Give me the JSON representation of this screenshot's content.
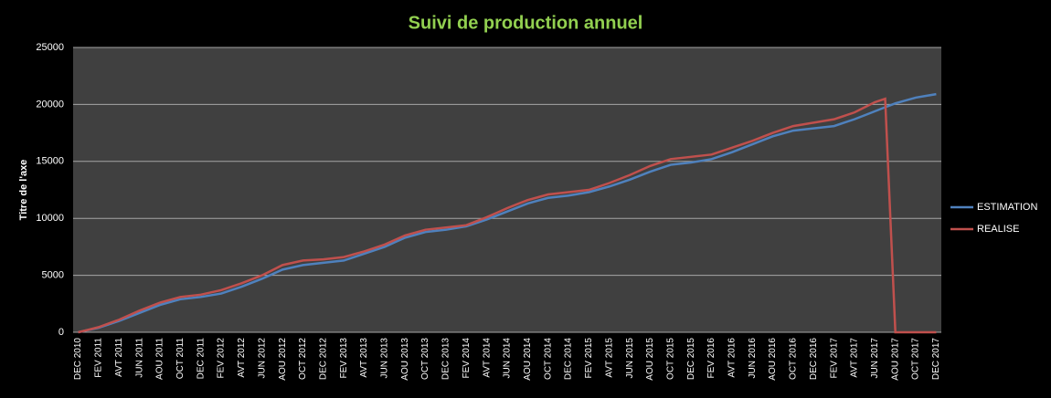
{
  "chart_data": {
    "type": "line",
    "title": "Suivi de production annuel",
    "y_label": "Titre de l'axe",
    "categories": [
      "DEC 2010",
      null,
      "FEV 2011",
      null,
      "AVT 2011",
      null,
      "JUN 2011",
      null,
      "AOU 2011",
      null,
      "OCT 2011",
      null,
      "DEC 2011",
      null,
      "FEV 2012",
      null,
      "AVT 2012",
      null,
      "JUN 2012",
      null,
      "AOU 2012",
      null,
      "OCT 2012",
      null,
      "DEC 2012",
      null,
      "FEV 2013",
      null,
      "AVT 2013",
      null,
      "JUN 2013",
      null,
      "AOU 2013",
      null,
      "OCT 2013",
      null,
      "DEC 2013",
      null,
      "FEV 2014",
      null,
      "AVT 2014",
      null,
      "JUN 2014",
      null,
      "AOU 2014",
      null,
      "OCT 2014",
      null,
      "DEC 2014",
      null,
      "FEV 2015",
      null,
      "AVT 2015",
      null,
      "JUN 2015",
      null,
      "AOU 2015",
      null,
      "OCT 2015",
      null,
      "DEC 2015",
      null,
      "FEV 2016",
      null,
      "AVT 2016",
      null,
      "JUN 2016",
      null,
      "AOU 2016",
      null,
      "OCT 2016",
      null,
      "DEC 2016",
      null,
      "FEV 2017",
      null,
      "AVT 2017",
      null,
      "JUN 2017",
      null,
      "AOU 2017",
      null,
      "OCT 2017",
      null,
      "DEC 2017"
    ],
    "series": [
      {
        "name": "ESTIMATION",
        "color": "#4f81bd",
        "values": [
          0,
          200,
          400,
          700,
          1000,
          1350,
          1700,
          2050,
          2400,
          2650,
          2900,
          3000,
          3100,
          3250,
          3400,
          3700,
          4000,
          4350,
          4700,
          5100,
          5500,
          5700,
          5900,
          6000,
          6100,
          6200,
          6300,
          6600,
          6900,
          7200,
          7500,
          7900,
          8300,
          8550,
          8800,
          8900,
          9000,
          9150,
          9300,
          9600,
          9900,
          10250,
          10600,
          10950,
          11300,
          11550,
          11800,
          11900,
          12000,
          12150,
          12300,
          12550,
          12800,
          13100,
          13400,
          13750,
          14100,
          14400,
          14700,
          14800,
          14900,
          15050,
          15200,
          15500,
          15800,
          16150,
          16500,
          16850,
          17200,
          17450,
          17700,
          17800,
          17900,
          18000,
          18100,
          18400,
          18700,
          19050,
          19400,
          19750,
          20100,
          20350,
          20600,
          20750,
          20900
        ]
      },
      {
        "name": "REALISE",
        "color": "#c0504d",
        "values": [
          0,
          220,
          450,
          780,
          1100,
          1500,
          1900,
          2250,
          2600,
          2850,
          3100,
          3200,
          3300,
          3500,
          3700,
          4000,
          4300,
          4650,
          5000,
          5450,
          5900,
          6100,
          6300,
          6350,
          6400,
          6500,
          6600,
          6850,
          7100,
          7400,
          7700,
          8100,
          8500,
          8750,
          9000,
          9100,
          9200,
          9300,
          9400,
          9750,
          10100,
          10500,
          10900,
          11250,
          11600,
          11850,
          12100,
          12200,
          12300,
          12400,
          12500,
          12800,
          13100,
          13450,
          13800,
          14200,
          14600,
          14900,
          15200,
          15300,
          15400,
          15500,
          15600,
          15900,
          16200,
          16500,
          16800,
          17150,
          17500,
          17800,
          18100,
          18250,
          18400,
          18550,
          18700,
          19000,
          19300,
          19750,
          20200,
          20500,
          0,
          0,
          0,
          0,
          0
        ]
      }
    ],
    "ylim": [
      0,
      25000
    ],
    "yticks": [
      0,
      5000,
      10000,
      15000,
      20000,
      25000
    ],
    "grid": true,
    "legend": "right"
  }
}
